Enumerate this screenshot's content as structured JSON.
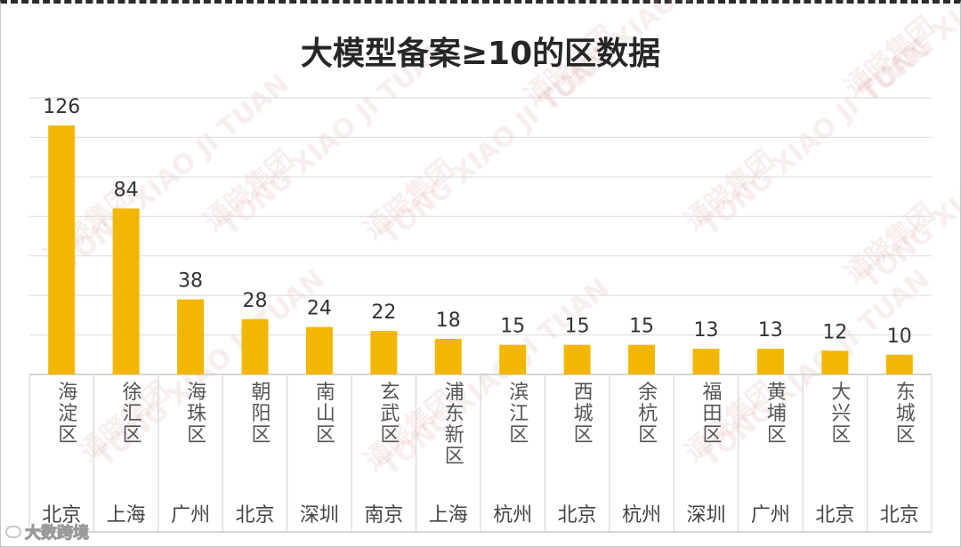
{
  "chart_data": {
    "type": "bar",
    "title": "大模型备案≥10的区数据",
    "categories": [
      "海淀区",
      "徐汇区",
      "海珠区",
      "朝阳区",
      "南山区",
      "玄武区",
      "浦东新区",
      "滨江区",
      "西城区",
      "余杭区",
      "福田区",
      "黄埔区",
      "大兴区",
      "东城区"
    ],
    "cities": [
      "北京",
      "上海",
      "广州",
      "北京",
      "深圳",
      "南京",
      "上海",
      "杭州",
      "北京",
      "杭州",
      "深圳",
      "广州",
      "北京",
      "北京"
    ],
    "values": [
      126,
      84,
      38,
      28,
      24,
      22,
      18,
      15,
      15,
      15,
      13,
      13,
      12,
      10
    ],
    "ylim": [
      0,
      140
    ],
    "grid": true,
    "legend": "none",
    "bar_color": "#f2b705",
    "grid_color": "#d9d9d9"
  },
  "watermark": {
    "text": "通晓集团",
    "subtext": "TONG XIAO JI TUAN"
  },
  "corner_badge": {
    "icon": "chain-link-icon",
    "text": "大数跨境"
  }
}
